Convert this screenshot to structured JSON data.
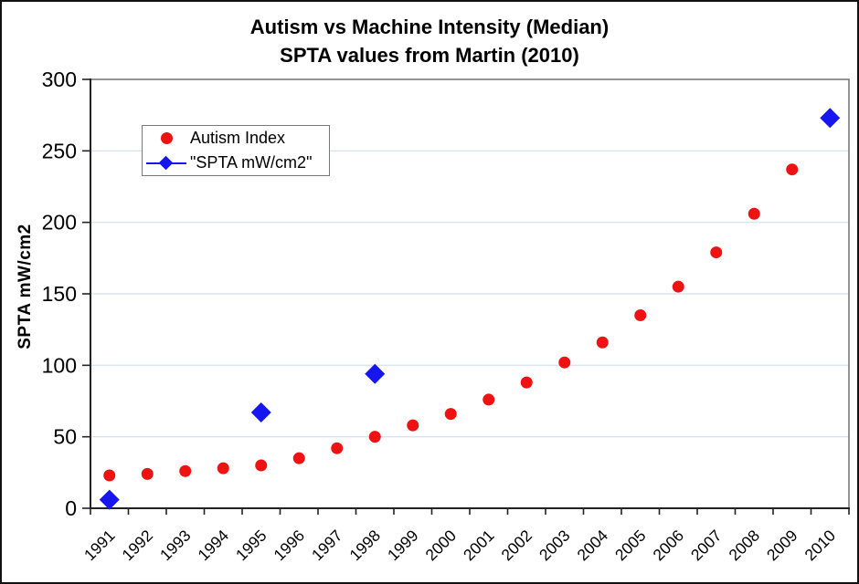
{
  "chart_data": {
    "type": "scatter",
    "title": "Autism vs Machine Intensity (Median)",
    "subtitle": "SPTA values from Martin (2010)",
    "ylabel": "SPTA mW/cm2",
    "xlabel": "",
    "categories": [
      "1991",
      "1992",
      "1993",
      "1994",
      "1995",
      "1996",
      "1997",
      "1998",
      "1999",
      "2000",
      "2001",
      "2002",
      "2003",
      "2004",
      "2005",
      "2006",
      "2007",
      "2008",
      "2009",
      "2010"
    ],
    "ylim": [
      0,
      300
    ],
    "yticks": [
      0,
      50,
      100,
      150,
      200,
      250,
      300
    ],
    "grid": "horizontal",
    "gridline_color": "#d9e4f0",
    "legend_position": "top-left-inside",
    "series": [
      {
        "name": "Autism Index",
        "marker": "circle",
        "color": "#ee1212",
        "values": [
          23,
          24,
          26,
          28,
          30,
          35,
          42,
          50,
          58,
          66,
          76,
          88,
          102,
          116,
          135,
          155,
          179,
          206,
          237,
          null
        ]
      },
      {
        "name": "\"SPTA mW/cm2\"",
        "marker": "diamond",
        "color": "#1616ee",
        "values": [
          6,
          null,
          null,
          null,
          67,
          null,
          null,
          94,
          null,
          null,
          null,
          null,
          null,
          null,
          null,
          null,
          null,
          null,
          null,
          273
        ]
      }
    ]
  }
}
